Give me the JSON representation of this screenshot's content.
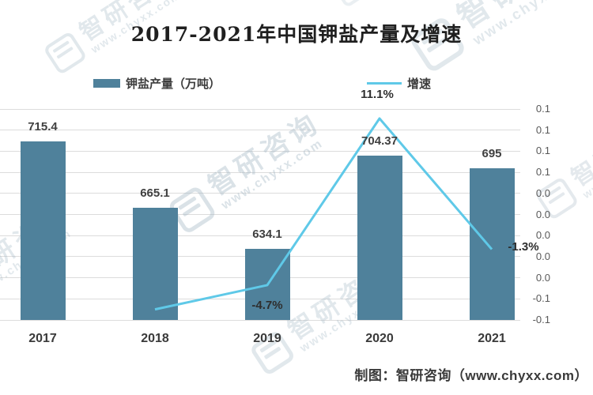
{
  "title": "2017-2021年中国钾盐产量及增速",
  "credit": "制图：智研咨询（www.chyxx.com）",
  "watermark": {
    "brand": "智研咨询",
    "url": "www.chyxx.com"
  },
  "colors": {
    "bar": "#4f819b",
    "line": "#5fc9e8",
    "grid": "#dcdcdc",
    "label": "#404040",
    "tick": "#595959",
    "watermark": "#9fb4c2"
  },
  "chart_data": {
    "type": "bar+line",
    "title": "2017-2021年中国钾盐产量及增速",
    "categories": [
      "2017",
      "2018",
      "2019",
      "2020",
      "2021"
    ],
    "series": [
      {
        "name": "钾盐产量（万吨）",
        "type": "bar",
        "axis": "primary",
        "values": [
          715.4,
          665.1,
          634.1,
          704.37,
          695
        ],
        "labels": [
          "715.4",
          "665.1",
          "634.1",
          "704.37",
          "695"
        ]
      },
      {
        "name": "增速",
        "type": "line",
        "axis": "secondary",
        "values": [
          null,
          -0.07,
          -0.047,
          0.111,
          -0.013
        ],
        "labels": [
          null,
          null,
          "-4.7%",
          "11.1%",
          "-1.3%"
        ]
      }
    ],
    "primary_axis": {
      "min": 580,
      "max": 740,
      "labels_visible": false
    },
    "secondary_axis": {
      "min": -0.08,
      "max": 0.12,
      "position": "right",
      "tick_labels_top_to_bottom": [
        "0.1",
        "0.1",
        "0.1",
        "0.1",
        "0.0",
        "0.0",
        "0.0",
        "0.0",
        "0.0",
        "-0.1",
        "-0.1"
      ]
    },
    "grid": "horizontal",
    "legend_position": "top"
  }
}
